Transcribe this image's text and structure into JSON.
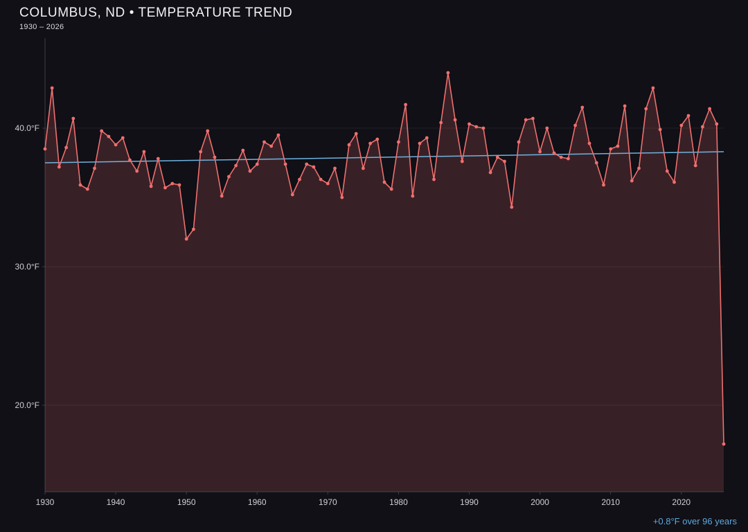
{
  "title": "COLUMBUS, ND • TEMPERATURE TREND",
  "subtitle": "1930 – 2026",
  "annotation": "+0.8°F over 96 years",
  "colors": {
    "background": "#101016",
    "line": "#ef6f6f",
    "area_fill": "#ef6f6f",
    "trend": "#6fb3e0",
    "annotation": "#5fa8dc",
    "grid": "rgba(255,255,255,0.07)",
    "spine": "#3c3c44",
    "tick_text": "#cfcfd4"
  },
  "chart_data": {
    "type": "line",
    "title": "COLUMBUS, ND • TEMPERATURE TREND",
    "subtitle": "1930 – 2026",
    "xlabel": "",
    "ylabel": "",
    "legend": "none",
    "grid": "horizontal-faint",
    "xlim": [
      1930,
      2026
    ],
    "ylim": [
      13.75,
      46.5
    ],
    "xticks": [
      1930,
      1940,
      1950,
      1960,
      1970,
      1980,
      1990,
      2000,
      2010,
      2020
    ],
    "yticks": [
      {
        "value": 40,
        "label": "40.0°F"
      },
      {
        "value": 30,
        "label": "30.0°F"
      },
      {
        "value": 20,
        "label": "20.0°F"
      }
    ],
    "x": [
      1930,
      1931,
      1932,
      1933,
      1934,
      1935,
      1936,
      1937,
      1938,
      1939,
      1940,
      1941,
      1942,
      1943,
      1944,
      1945,
      1946,
      1947,
      1948,
      1949,
      1950,
      1951,
      1952,
      1953,
      1954,
      1955,
      1956,
      1957,
      1958,
      1959,
      1960,
      1961,
      1962,
      1963,
      1964,
      1965,
      1966,
      1967,
      1968,
      1969,
      1970,
      1971,
      1972,
      1973,
      1974,
      1975,
      1976,
      1977,
      1978,
      1979,
      1980,
      1981,
      1982,
      1983,
      1984,
      1985,
      1986,
      1987,
      1988,
      1989,
      1990,
      1991,
      1992,
      1993,
      1994,
      1995,
      1996,
      1997,
      1998,
      1999,
      2000,
      2001,
      2002,
      2003,
      2004,
      2005,
      2006,
      2007,
      2008,
      2009,
      2010,
      2011,
      2012,
      2013,
      2014,
      2015,
      2016,
      2017,
      2018,
      2019,
      2020,
      2021,
      2022,
      2023,
      2024,
      2025,
      2026
    ],
    "values": [
      38.5,
      42.9,
      37.2,
      38.6,
      40.7,
      35.9,
      35.6,
      37.1,
      39.8,
      39.4,
      38.8,
      39.3,
      37.7,
      36.9,
      38.3,
      35.8,
      37.8,
      35.7,
      36.0,
      35.9,
      32.0,
      32.7,
      38.3,
      39.8,
      37.9,
      35.1,
      36.5,
      37.3,
      38.4,
      36.9,
      37.4,
      39.0,
      38.7,
      39.5,
      37.4,
      35.2,
      36.3,
      37.4,
      37.2,
      36.3,
      36.0,
      37.1,
      35.0,
      38.8,
      39.6,
      37.1,
      38.9,
      39.2,
      36.1,
      35.6,
      39.0,
      41.7,
      35.1,
      38.9,
      39.3,
      36.3,
      40.4,
      44.0,
      40.6,
      37.6,
      40.3,
      40.1,
      40.0,
      36.8,
      37.9,
      37.6,
      34.3,
      39.0,
      40.6,
      40.7,
      38.3,
      40.0,
      38.2,
      37.9,
      37.8,
      40.2,
      41.5,
      38.9,
      37.5,
      35.9,
      38.5,
      38.7,
      41.6,
      36.2,
      37.1,
      41.4,
      42.9,
      39.9,
      36.9,
      36.1,
      40.2,
      40.9,
      37.3,
      40.1,
      41.4,
      40.3,
      17.2
    ],
    "trend_line": {
      "x_start": 1930,
      "y_start": 37.5,
      "x_end": 2026,
      "y_end": 38.3
    },
    "trend_summary": "+0.8°F over 96 years"
  }
}
